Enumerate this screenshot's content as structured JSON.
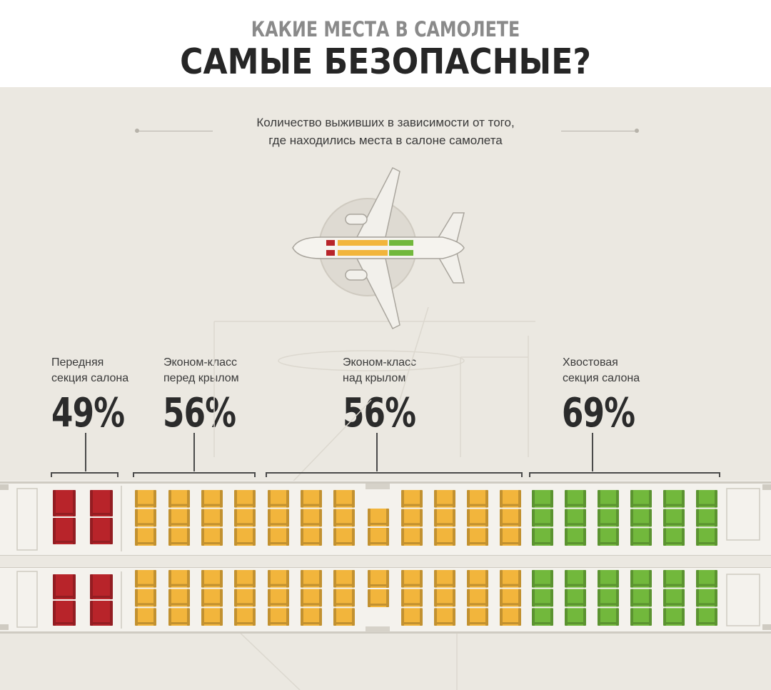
{
  "header": {
    "kicker": "КАКИЕ МЕСТА В САМОЛЕТЕ",
    "headline": "САМЫЕ БЕЗОПАСНЫЕ?"
  },
  "subtitle": {
    "line1": "Количество выживших в зависимости от того,",
    "line2": "где находились места в салоне самолета"
  },
  "sections": [
    {
      "label_line1": "Передняя",
      "label_line2": "секция салона",
      "percent": "49%",
      "color": "#b8242a"
    },
    {
      "label_line1": "Эконом-класс",
      "label_line2": "перед крылом",
      "percent": "56%",
      "color": "#f2b53c"
    },
    {
      "label_line1": "Эконом-класс",
      "label_line2": "над крылом",
      "percent": "56%",
      "color": "#f2b53c"
    },
    {
      "label_line1": "Хвостовая",
      "label_line2": "секция салона",
      "percent": "69%",
      "color": "#72b83c"
    }
  ],
  "colors": {
    "background": "#ebe8e1",
    "front": "#b8242a",
    "economy": "#f2b53c",
    "tail": "#72b83c"
  }
}
